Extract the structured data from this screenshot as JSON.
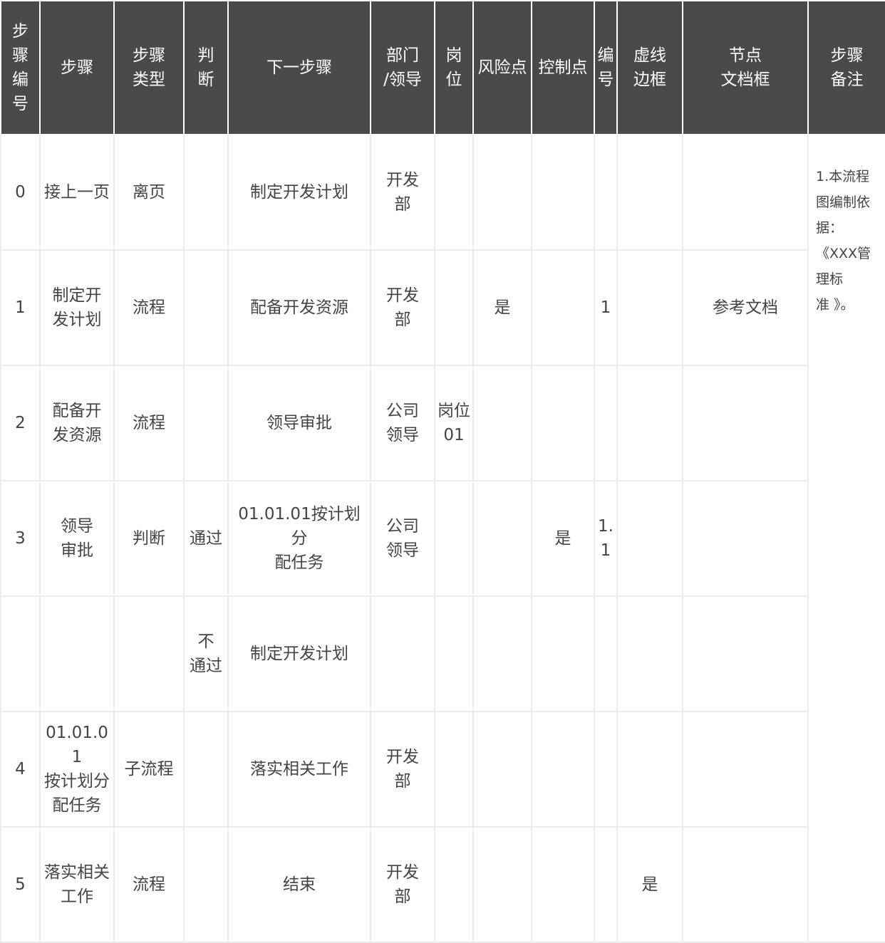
{
  "headers": [
    "步骤编号",
    "步骤",
    "步骤类型",
    "判断",
    "下一步骤",
    "部门/领导",
    "岗位",
    "风险点",
    "控制点",
    "编号",
    "虚线边框",
    "节点文档框",
    "步骤备注"
  ],
  "header_display": {
    "h0": "步\n骤\n编\n号",
    "h1": "步骤",
    "h2": "步骤\n类型",
    "h3": "判\n断",
    "h4": "下一步骤",
    "h5": "部门\n/领导",
    "h6": "岗\n位",
    "h7": "风险点",
    "h8": "控制点",
    "h9": "编\n号",
    "h10": "虚线\n边框",
    "h11": "节点\n文档框",
    "h12": "步骤\n备注"
  },
  "rows": [
    {
      "num": "0",
      "step": "接上一页",
      "type": "离页",
      "judge": "",
      "next": "制定开发计划",
      "dept": "开发\n部",
      "post": "",
      "risk": "",
      "control": "",
      "code": "",
      "dashed": "",
      "doc": ""
    },
    {
      "num": "1",
      "step": "制定开\n发计划",
      "type": "流程",
      "judge": "",
      "next": "配备开发资源",
      "dept": "开发\n部",
      "post": "",
      "risk": "是",
      "control": "",
      "code": "1",
      "dashed": "",
      "doc": "参考文档"
    },
    {
      "num": "2",
      "step": "配备开\n发资源",
      "type": "流程",
      "judge": "",
      "next": "领导审批",
      "dept": "公司\n领导",
      "post": "岗位\n01",
      "risk": "",
      "control": "",
      "code": "",
      "dashed": "",
      "doc": ""
    },
    {
      "num": "3",
      "step": "领导\n审批",
      "type": "判断",
      "judge": "通过",
      "next": "01.01.01按计划分\n配任务",
      "dept": "公司\n领导",
      "post": "",
      "risk": "",
      "control": "是",
      "code": "1.1",
      "dashed": "",
      "doc": ""
    },
    {
      "num": "",
      "step": "",
      "type": "",
      "judge": "不\n通过",
      "next": "制定开发计划",
      "dept": "",
      "post": "",
      "risk": "",
      "control": "",
      "code": "",
      "dashed": "",
      "doc": ""
    },
    {
      "num": "4",
      "step": "01.01.01\n按计划分\n配任务",
      "type": "子流程",
      "judge": "",
      "next": "落实相关工作",
      "dept": "开发\n部",
      "post": "",
      "risk": "",
      "control": "",
      "code": "",
      "dashed": "",
      "doc": ""
    },
    {
      "num": "5",
      "step": "落实相关\n工作",
      "type": "流程",
      "judge": "",
      "next": "结束",
      "dept": "开发\n部",
      "post": "",
      "risk": "",
      "control": "",
      "code": "",
      "dashed": "是",
      "doc": ""
    }
  ],
  "notes": "1.本流程\n图编制依\n据：\n《XXX管\n理标\n准 》。"
}
